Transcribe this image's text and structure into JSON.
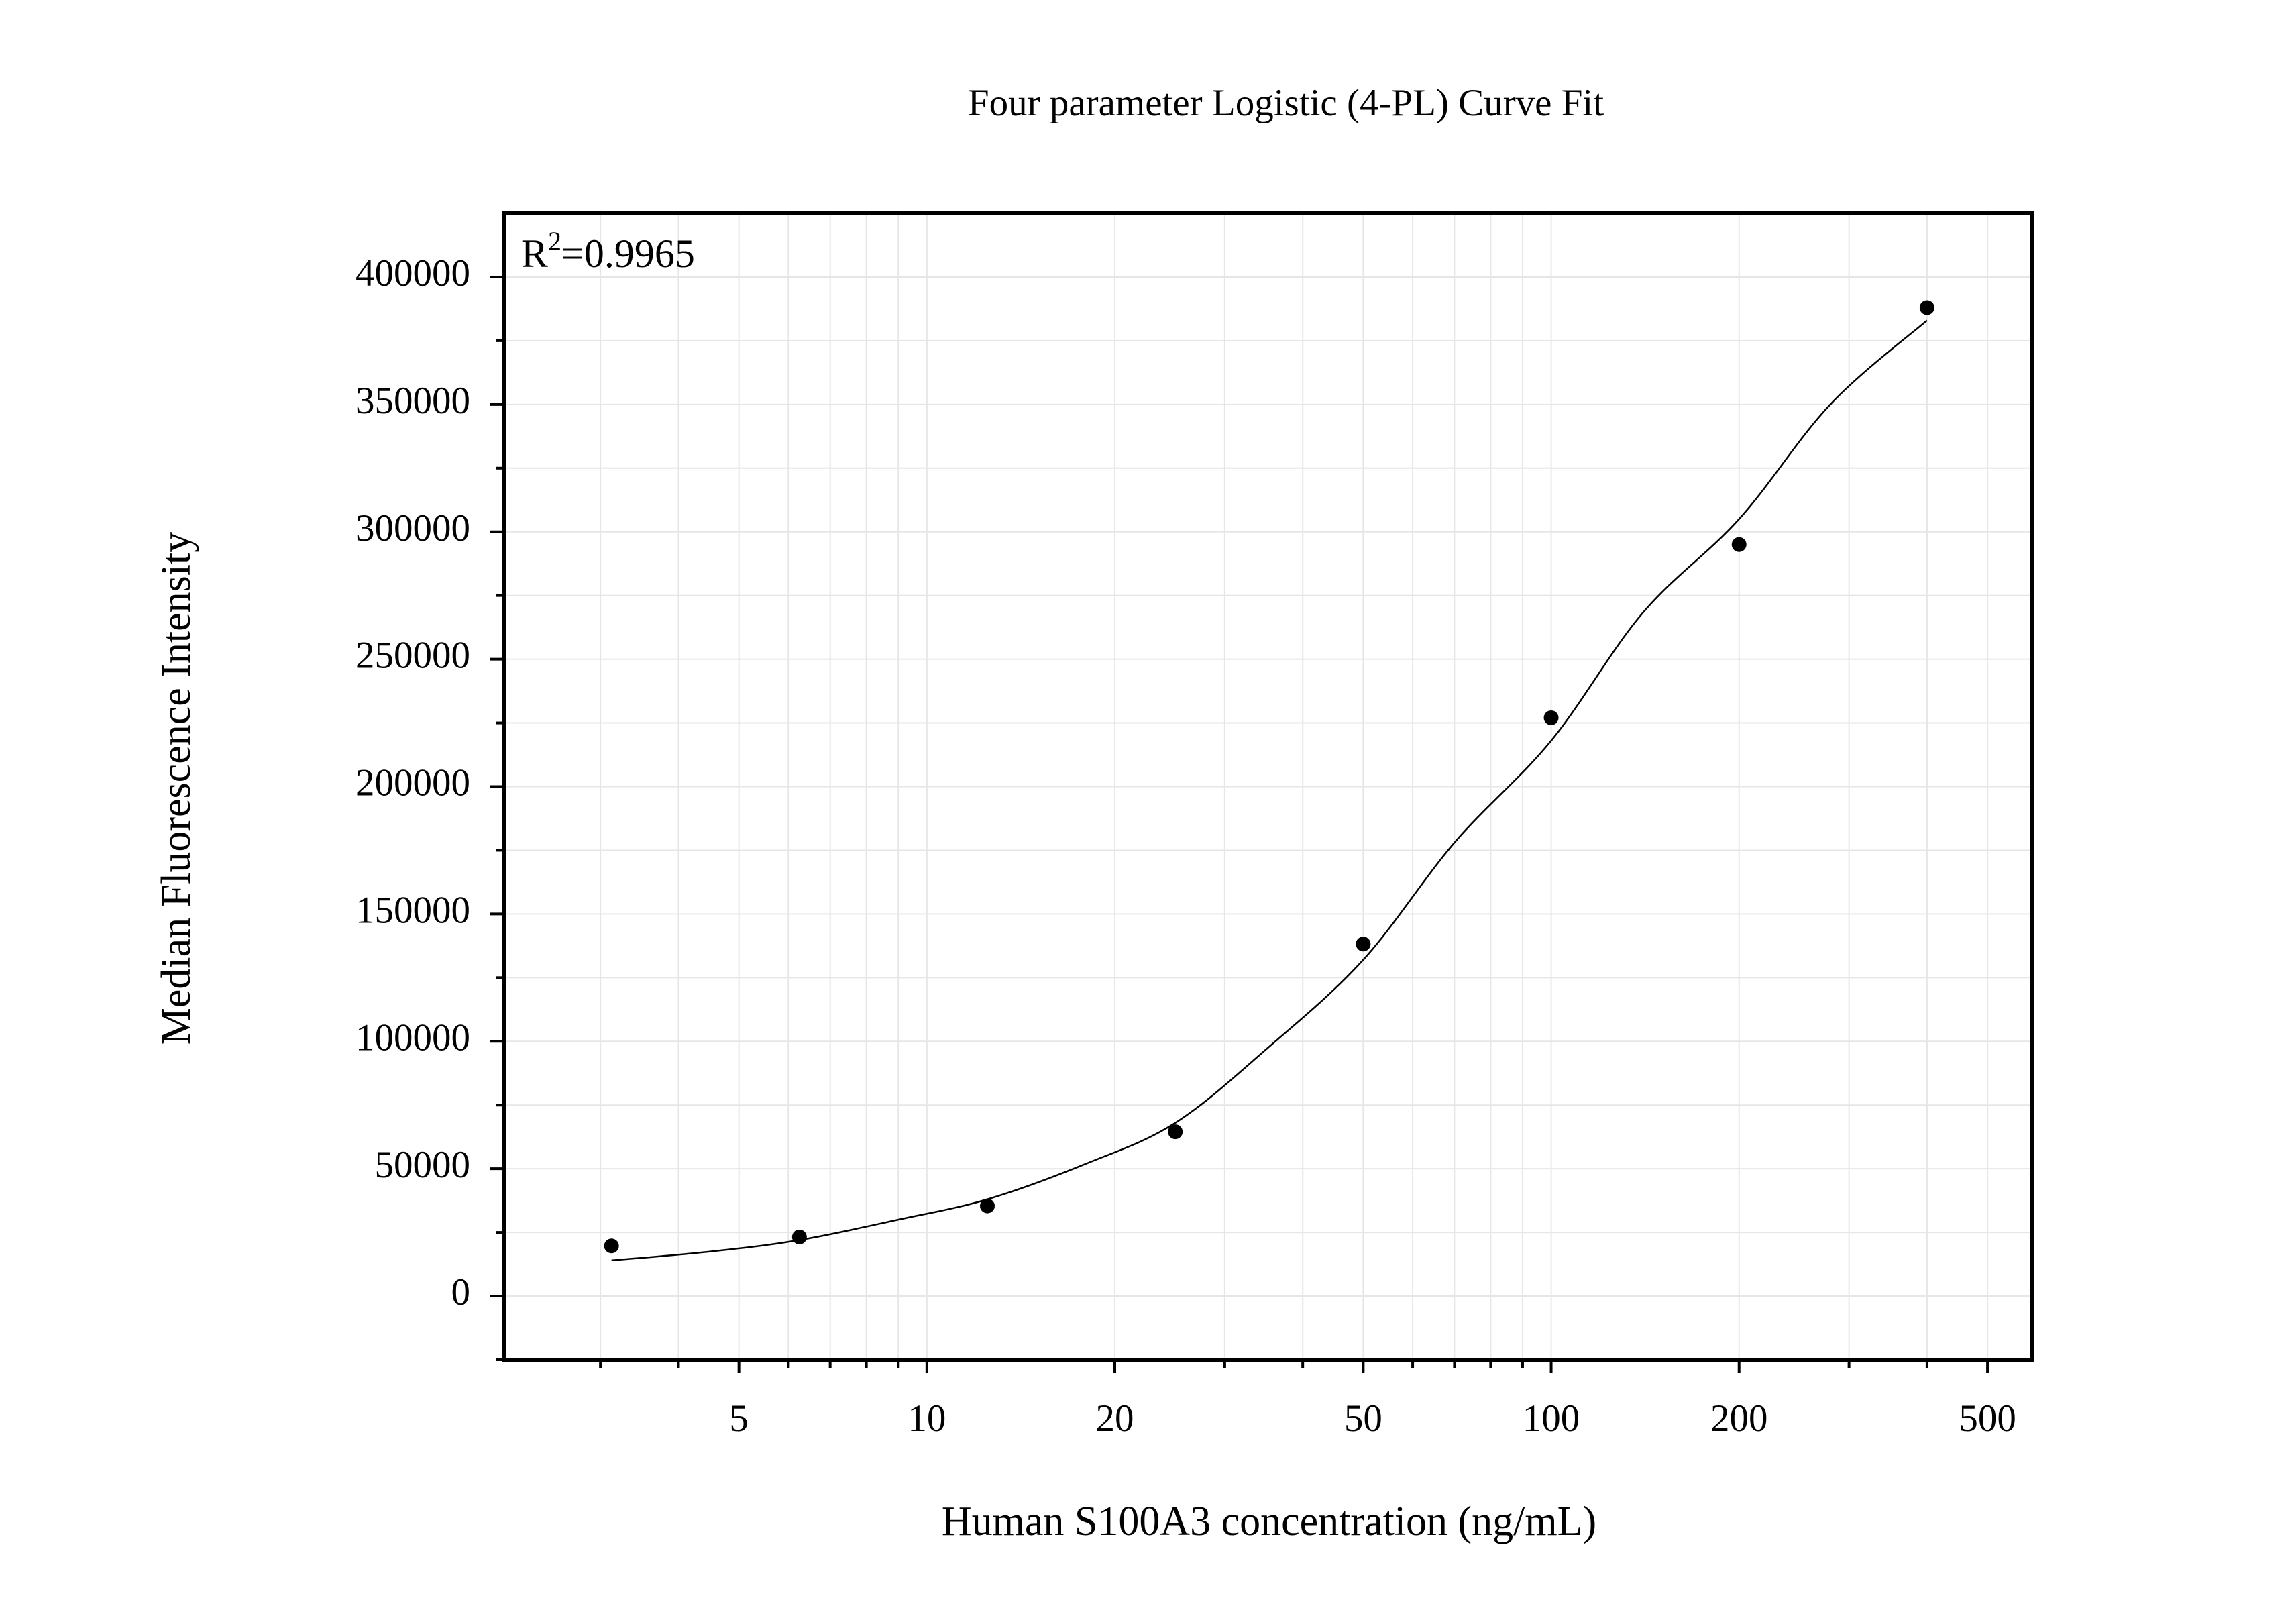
{
  "chart_data": {
    "type": "scatter",
    "title": "Four parameter Logistic (4-PL) Curve Fit",
    "xlabel": "Human S100A3 concentration (ng/mL)",
    "ylabel": "Median Fluorescence Intensity",
    "annotation": [
      "R",
      "2",
      "=0.9965"
    ],
    "xscale": "log",
    "grid": true,
    "xlim": [
      2.1,
      590
    ],
    "ylim": [
      -25000,
      425000
    ],
    "xticks": [
      5,
      10,
      20,
      50,
      100,
      200,
      500
    ],
    "xminorticks": [
      3,
      4,
      6,
      7,
      8,
      9,
      30,
      40,
      60,
      70,
      80,
      90,
      300,
      400
    ],
    "yticks": [
      0,
      50000,
      100000,
      150000,
      200000,
      250000,
      300000,
      350000,
      400000
    ],
    "yminorticks": [
      -25000,
      25000,
      75000,
      125000,
      175000,
      225000,
      275000,
      325000,
      375000
    ],
    "series": [
      {
        "color": "#000000",
        "x": [
          3.125,
          6.25,
          12.5,
          25,
          50,
          100,
          200,
          400
        ],
        "values": [
          19700,
          23200,
          35400,
          64500,
          138200,
          227000,
          295000,
          388000
        ]
      }
    ],
    "fit": {
      "color": "#000000",
      "x": [
        3.125,
        4.5,
        6.25,
        9,
        12.5,
        18,
        25,
        35,
        50,
        70,
        100,
        140,
        200,
        280,
        400
      ],
      "values": [
        14000,
        17500,
        22000,
        30000,
        38000,
        52000,
        68000,
        97000,
        132000,
        178000,
        218000,
        268000,
        305000,
        350000,
        383000
      ]
    }
  }
}
